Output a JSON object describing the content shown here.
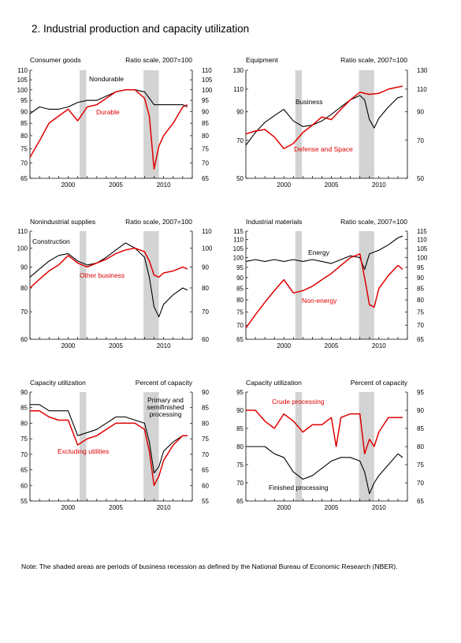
{
  "page": {
    "title": "2.  Industrial production and capacity utilization",
    "note": "Note: The shaded areas are periods of business recession as defined by the National Bureau of Economic Research (NBER)."
  },
  "colors": {
    "black_series": "#000000",
    "red_series": "#e00000",
    "recession_shading": "#d3d3d3"
  },
  "chart_data": [
    {
      "type": "line",
      "title": "Consumer goods",
      "scale_note": "Ratio scale, 2007=100",
      "log_scale": true,
      "xlim": [
        1996,
        2013
      ],
      "xticks": [
        2000,
        2005,
        2010
      ],
      "ylim": [
        65,
        110
      ],
      "yticks": [
        65,
        70,
        75,
        80,
        85,
        90,
        95,
        100,
        105,
        110
      ],
      "recessions": [
        [
          2001.2,
          2001.9
        ],
        [
          2007.9,
          2009.5
        ]
      ],
      "series": [
        {
          "name": "Nondurable",
          "color": "black",
          "x": [
            1996,
            1997,
            1998,
            1999,
            2000,
            2001,
            2002,
            2003,
            2004,
            2005,
            2006,
            2007,
            2008,
            2008.5,
            2009,
            2010,
            2011,
            2012,
            2012.5
          ],
          "y": [
            89,
            92,
            91,
            91,
            92,
            94,
            95,
            95,
            97,
            99,
            100,
            100,
            99,
            96,
            93,
            93,
            93,
            93,
            92
          ]
        },
        {
          "name": "Durable",
          "color": "red",
          "x": [
            1996,
            1997,
            1998,
            1999,
            2000,
            2001,
            2002,
            2003,
            2004,
            2005,
            2006,
            2007,
            2008,
            2008.5,
            2009,
            2009.5,
            2010,
            2011,
            2012,
            2012.5
          ],
          "y": [
            72,
            78,
            85,
            88,
            91,
            86,
            92,
            93,
            96,
            99,
            100,
            100,
            96,
            88,
            68,
            76,
            80,
            85,
            92,
            93
          ]
        }
      ],
      "annotations": [
        {
          "text": "Nondurable",
          "color": "black"
        },
        {
          "text": "Durable",
          "color": "red"
        }
      ]
    },
    {
      "type": "line",
      "title": "Equipment",
      "scale_note": "Ratio scale, 2007=100",
      "log_scale": true,
      "xlim": [
        1996,
        2013
      ],
      "xticks": [
        2000,
        2005,
        2010
      ],
      "ylim": [
        50,
        130
      ],
      "yticks": [
        50,
        70,
        90,
        110,
        130
      ],
      "recessions": [
        [
          2001.2,
          2001.9
        ],
        [
          2007.9,
          2009.5
        ]
      ],
      "series": [
        {
          "name": "Business",
          "color": "black",
          "x": [
            1996,
            1997,
            1998,
            1999,
            2000,
            2001,
            2002,
            2003,
            2004,
            2005,
            2006,
            2007,
            2008,
            2008.5,
            2009,
            2009.5,
            2010,
            2011,
            2012,
            2012.5
          ],
          "y": [
            67,
            75,
            82,
            87,
            92,
            83,
            79,
            80,
            83,
            88,
            94,
            100,
            104,
            100,
            84,
            78,
            85,
            94,
            102,
            103
          ]
        },
        {
          "name": "Defense and Space",
          "color": "red",
          "x": [
            1996,
            1997,
            1998,
            1999,
            2000,
            2001,
            2002,
            2003,
            2004,
            2005,
            2006,
            2007,
            2008,
            2009,
            2010,
            2011,
            2012,
            2012.5
          ],
          "y": [
            74,
            76,
            77,
            72,
            65,
            68,
            75,
            80,
            86,
            84,
            92,
            100,
            107,
            105,
            106,
            110,
            112,
            113
          ]
        }
      ],
      "annotations": [
        {
          "text": "Business",
          "color": "black"
        },
        {
          "text": "Defense and Space",
          "color": "red"
        }
      ]
    },
    {
      "type": "line",
      "title": "Nonindustrial supplies",
      "scale_note": "Ratio scale, 2007=100",
      "log_scale": true,
      "xlim": [
        1996,
        2013
      ],
      "xticks": [
        2000,
        2005,
        2010
      ],
      "ylim": [
        60,
        110
      ],
      "yticks": [
        60,
        70,
        80,
        90,
        100,
        110
      ],
      "recessions": [
        [
          2001.2,
          2001.9
        ],
        [
          2007.9,
          2009.5
        ]
      ],
      "series": [
        {
          "name": "Construction",
          "color": "black",
          "x": [
            1996,
            1997,
            1998,
            1999,
            2000,
            2001,
            2002,
            2003,
            2004,
            2005,
            2006,
            2007,
            2008,
            2008.5,
            2009,
            2009.5,
            2010,
            2011,
            2012,
            2012.5
          ],
          "y": [
            85,
            89,
            93,
            96,
            97,
            93,
            91,
            92,
            95,
            99,
            103,
            100,
            95,
            85,
            72,
            68,
            73,
            77,
            80,
            79
          ]
        },
        {
          "name": "Other business",
          "color": "red",
          "x": [
            1996,
            1997,
            1998,
            1999,
            2000,
            2001,
            2002,
            2003,
            2004,
            2005,
            2006,
            2007,
            2008,
            2008.5,
            2009,
            2009.5,
            2010,
            2011,
            2012,
            2012.5
          ],
          "y": [
            80,
            84,
            88,
            91,
            96,
            92,
            90,
            92,
            94,
            97,
            99,
            100,
            98,
            93,
            86,
            85,
            87,
            88,
            90,
            89
          ]
        }
      ],
      "annotations": [
        {
          "text": "Construction",
          "color": "black"
        },
        {
          "text": "Other business",
          "color": "red"
        }
      ]
    },
    {
      "type": "line",
      "title": "Industrial materials",
      "scale_note": "Ratio scale, 2007=100",
      "log_scale": true,
      "xlim": [
        1996,
        2013
      ],
      "xticks": [
        2000,
        2005,
        2010
      ],
      "ylim": [
        65,
        115
      ],
      "yticks": [
        65,
        70,
        75,
        80,
        85,
        90,
        95,
        100,
        105,
        110,
        115
      ],
      "recessions": [
        [
          2001.2,
          2001.9
        ],
        [
          2007.9,
          2009.5
        ]
      ],
      "series": [
        {
          "name": "Energy",
          "color": "black",
          "x": [
            1996,
            1997,
            1998,
            1999,
            2000,
            2001,
            2002,
            2003,
            2004,
            2005,
            2006,
            2007,
            2008,
            2008.5,
            2009,
            2010,
            2011,
            2012,
            2012.5
          ],
          "y": [
            98,
            99,
            98,
            99,
            98,
            99,
            98,
            99,
            98,
            97,
            99,
            101,
            100,
            94,
            102,
            104,
            107,
            111,
            112
          ]
        },
        {
          "name": "Non-energy",
          "color": "red",
          "x": [
            1996,
            1997,
            1998,
            1999,
            2000,
            2001,
            2002,
            2003,
            2004,
            2005,
            2006,
            2007,
            2008,
            2008.5,
            2009,
            2009.5,
            2010,
            2011,
            2012,
            2012.5
          ],
          "y": [
            69,
            74,
            79,
            84,
            89,
            83,
            84,
            86,
            89,
            92,
            96,
            100,
            102,
            90,
            78,
            77,
            85,
            91,
            96,
            94
          ]
        }
      ],
      "annotations": [
        {
          "text": "Energy",
          "color": "black"
        },
        {
          "text": "Non-energy",
          "color": "red"
        }
      ]
    },
    {
      "type": "line",
      "title": "Capacity utilization",
      "scale_note": "Percent of capacity",
      "log_scale": false,
      "xlim": [
        1996,
        2013
      ],
      "xticks": [
        2000,
        2005,
        2010
      ],
      "ylim": [
        55,
        90
      ],
      "yticks": [
        55,
        60,
        65,
        70,
        75,
        80,
        85,
        90
      ],
      "recessions": [
        [
          2001.2,
          2001.9
        ],
        [
          2007.9,
          2009.5
        ]
      ],
      "series": [
        {
          "name": "Primary and semifinished processing",
          "color": "black",
          "x": [
            1996,
            1997,
            1998,
            1999,
            2000,
            2001,
            2002,
            2003,
            2004,
            2005,
            2006,
            2007,
            2008,
            2008.5,
            2009,
            2009.5,
            2010,
            2011,
            2012,
            2012.5
          ],
          "y": [
            86,
            86,
            84,
            84,
            84,
            76,
            77,
            78,
            80,
            82,
            82,
            81,
            80,
            74,
            64,
            66,
            71,
            74,
            76,
            76
          ]
        },
        {
          "name": "Excluding utilities",
          "color": "red",
          "x": [
            1996,
            1997,
            1998,
            1999,
            2000,
            2001,
            2002,
            2003,
            2004,
            2005,
            2006,
            2007,
            2008,
            2008.5,
            2009,
            2009.5,
            2010,
            2011,
            2012,
            2012.5
          ],
          "y": [
            84,
            84,
            82,
            81,
            81,
            73,
            75,
            76,
            78,
            80,
            80,
            80,
            78,
            71,
            60,
            63,
            68,
            73,
            76,
            76
          ]
        }
      ],
      "annotations": [
        {
          "text": "Primary and",
          "color": "black"
        },
        {
          "text": "semifinished",
          "color": "black"
        },
        {
          "text": "processing",
          "color": "black"
        },
        {
          "text": "Excluding utilities",
          "color": "red"
        }
      ]
    },
    {
      "type": "line",
      "title": "Capacity utilization",
      "scale_note": "Percent of capacity",
      "log_scale": false,
      "xlim": [
        1996,
        2013
      ],
      "xticks": [
        2000,
        2005,
        2010
      ],
      "ylim": [
        65,
        95
      ],
      "yticks": [
        65,
        70,
        75,
        80,
        85,
        90,
        95
      ],
      "recessions": [
        [
          2001.2,
          2001.9
        ],
        [
          2007.9,
          2009.5
        ]
      ],
      "series": [
        {
          "name": "Crude processing",
          "color": "red",
          "x": [
            1996,
            1997,
            1998,
            1999,
            2000,
            2001,
            2002,
            2003,
            2004,
            2005,
            2005.5,
            2006,
            2007,
            2008,
            2008.5,
            2009,
            2009.5,
            2010,
            2011,
            2012,
            2012.5
          ],
          "y": [
            90,
            90,
            87,
            85,
            89,
            87,
            84,
            86,
            86,
            88,
            80,
            88,
            89,
            89,
            78,
            82,
            80,
            84,
            88,
            88,
            88
          ]
        },
        {
          "name": "Finished processing",
          "color": "black",
          "x": [
            1996,
            1997,
            1998,
            1999,
            2000,
            2001,
            2002,
            2003,
            2004,
            2005,
            2006,
            2007,
            2008,
            2008.5,
            2009,
            2009.5,
            2010,
            2011,
            2012,
            2012.5
          ],
          "y": [
            80,
            80,
            80,
            78,
            77,
            73,
            71,
            72,
            74,
            76,
            77,
            77,
            76,
            73,
            67,
            70,
            72,
            75,
            78,
            77
          ]
        }
      ],
      "annotations": [
        {
          "text": "Crude processing",
          "color": "red"
        },
        {
          "text": "Finished processing",
          "color": "black"
        }
      ]
    }
  ]
}
